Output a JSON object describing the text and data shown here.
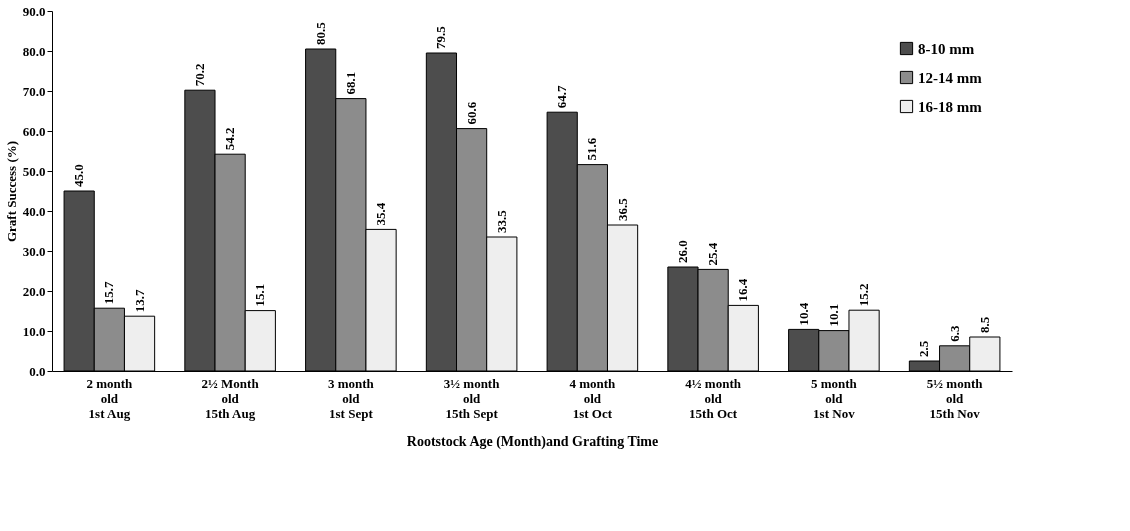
{
  "chart_data": {
    "type": "bar",
    "xlabel": "Rootstock Age  (Month)and  Grafting  Time",
    "ylabel": "Graft Success (%)",
    "categories": [
      "2 month\nold\n1st Aug",
      "2½ Month\nold\n15th Aug",
      "3 month\nold\n1st Sept",
      "3½ month\nold\n15th Sept",
      "4 month\nold\n1st Oct",
      "4½ month\nold\n15th Oct",
      "5 month\nold\n1st Nov",
      "5½ month\nold\n15th Nov"
    ],
    "series": [
      {
        "name": "8-10 mm",
        "color": "#4d4d4d",
        "values": [
          45.0,
          70.2,
          80.5,
          79.5,
          64.7,
          26.0,
          10.4,
          2.5
        ],
        "value_labels": [
          "45.0",
          "70.2",
          "80.5",
          "79.5",
          "64.7",
          "26.0",
          "10.4",
          "2.5"
        ]
      },
      {
        "name": "12-14 mm",
        "color": "#8c8c8c",
        "values": [
          15.7,
          54.2,
          68.1,
          60.6,
          51.6,
          25.4,
          10.1,
          6.3
        ],
        "value_labels": [
          "15.7",
          "54.2",
          "68.1",
          "60.6",
          "51.6",
          "25.4",
          "10.1",
          "6.3"
        ]
      },
      {
        "name": "16-18 mm",
        "color": "#eeeeee",
        "values": [
          13.7,
          15.1,
          35.4,
          33.5,
          36.5,
          16.4,
          15.2,
          8.5
        ],
        "value_labels": [
          "13.7",
          "15.1",
          "35.4",
          "33.5",
          "36.5",
          "16.4",
          "15.2",
          "8.5"
        ]
      }
    ],
    "ylim": [
      0,
      90
    ],
    "yticks": [
      {
        "value": 0,
        "label": "0.0"
      },
      {
        "value": 10,
        "label": "10.0"
      },
      {
        "value": 20,
        "label": "20.0"
      },
      {
        "value": 30,
        "label": "30.0"
      },
      {
        "value": 40,
        "label": "40.0"
      },
      {
        "value": 50,
        "label": "50.0"
      },
      {
        "value": 60,
        "label": "60.0"
      },
      {
        "value": 70,
        "label": "70.0"
      },
      {
        "value": 80,
        "label": "80.0"
      },
      {
        "value": 90,
        "label": "90.0"
      }
    ],
    "legend": "top right",
    "grid": false
  }
}
